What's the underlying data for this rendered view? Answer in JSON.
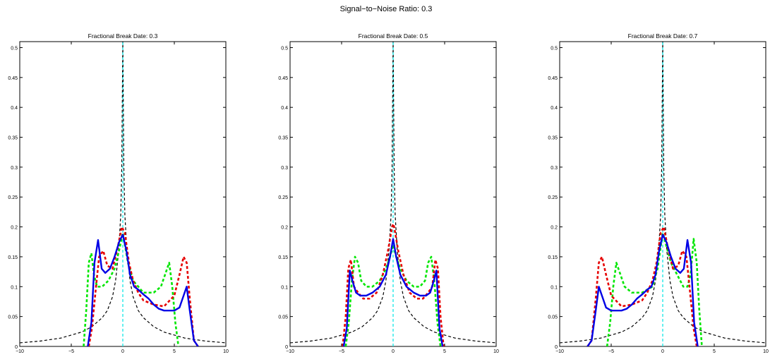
{
  "figure": {
    "suptitle": "Signal−to−Noise Ratio: 0.3"
  },
  "chart_data": [
    {
      "type": "line",
      "title": "Fractional Break Date: 0.3",
      "xlim": [
        -10,
        10
      ],
      "ylim": [
        0,
        0.51
      ],
      "xticks": [
        -10,
        -5,
        0,
        5,
        10
      ],
      "yticks": [
        0,
        0.05,
        0.1,
        0.15,
        0.2,
        0.25,
        0.3,
        0.35,
        0.4,
        0.45,
        0.5
      ],
      "grid": false,
      "series": [
        {
          "color": "#000000",
          "style": "dashed",
          "width": 1.2,
          "x": [
            -10,
            -8,
            -6,
            -4,
            -3,
            -2,
            -1.5,
            -1,
            -0.7,
            -0.4,
            -0.2,
            -0.1,
            0,
            0.1,
            0.2,
            0.4,
            0.7,
            1,
            1.5,
            2,
            3,
            4,
            6,
            8,
            10
          ],
          "y": [
            0.006,
            0.009,
            0.014,
            0.024,
            0.033,
            0.048,
            0.06,
            0.083,
            0.11,
            0.16,
            0.22,
            0.3,
            0.51,
            0.3,
            0.22,
            0.16,
            0.11,
            0.083,
            0.06,
            0.048,
            0.033,
            0.024,
            0.014,
            0.009,
            0.006
          ]
        },
        {
          "color": "#00e5e5",
          "style": "dashed",
          "width": 1.2,
          "x": [
            0,
            0
          ],
          "y": [
            0,
            0.51
          ]
        },
        {
          "color": "#00e600",
          "style": "dashed",
          "width": 2.6,
          "x": [
            -3.8,
            -3.55,
            -3.3,
            -3.05,
            -2.8,
            -2.5,
            -2.0,
            -1.4,
            -0.8,
            -0.3,
            0,
            0.5,
            1.0,
            2.0,
            3.0,
            3.7,
            4.2,
            4.5,
            4.8,
            5.1,
            5.4
          ],
          "y": [
            0,
            0.06,
            0.14,
            0.156,
            0.12,
            0.1,
            0.1,
            0.11,
            0.13,
            0.165,
            0.19,
            0.14,
            0.11,
            0.09,
            0.09,
            0.1,
            0.125,
            0.14,
            0.1,
            0.04,
            0
          ]
        },
        {
          "color": "#e60000",
          "style": "dashed",
          "width": 2.6,
          "x": [
            -3.3,
            -3.0,
            -2.6,
            -2.3,
            -1.9,
            -1.5,
            -1.0,
            -0.5,
            -0.1,
            0.2,
            0.6,
            1.0,
            1.5,
            2.0,
            3.0,
            4.0,
            5.0,
            5.5,
            5.9,
            6.2,
            6.5,
            6.9,
            7.3
          ],
          "y": [
            0,
            0.03,
            0.1,
            0.15,
            0.16,
            0.135,
            0.13,
            0.165,
            0.2,
            0.19,
            0.14,
            0.11,
            0.09,
            0.077,
            0.07,
            0.067,
            0.085,
            0.12,
            0.15,
            0.14,
            0.08,
            0.01,
            0
          ]
        },
        {
          "color": "#0000e6",
          "style": "solid",
          "width": 2.4,
          "x": [
            -3.4,
            -3.05,
            -2.75,
            -2.4,
            -2.05,
            -1.7,
            -1.25,
            -0.8,
            -0.35,
            0,
            0.35,
            0.7,
            1.1,
            1.5,
            2.0,
            2.5,
            3.0,
            3.5,
            4.0,
            4.5,
            5.0,
            5.5,
            5.9,
            6.2,
            6.5,
            6.9,
            7.3
          ],
          "y": [
            0,
            0.04,
            0.14,
            0.178,
            0.13,
            0.123,
            0.13,
            0.15,
            0.175,
            0.187,
            0.16,
            0.12,
            0.1,
            0.095,
            0.087,
            0.08,
            0.07,
            0.063,
            0.06,
            0.06,
            0.06,
            0.065,
            0.085,
            0.1,
            0.06,
            0.01,
            0
          ]
        }
      ]
    },
    {
      "type": "line",
      "title": "Fractional Break Date: 0.5",
      "xlim": [
        -10,
        10
      ],
      "ylim": [
        0,
        0.51
      ],
      "xticks": [
        -10,
        -5,
        0,
        5,
        10
      ],
      "yticks": [
        0,
        0.05,
        0.1,
        0.15,
        0.2,
        0.25,
        0.3,
        0.35,
        0.4,
        0.45,
        0.5
      ],
      "grid": false,
      "series": [
        {
          "color": "#000000",
          "style": "dashed",
          "width": 1.2,
          "x": [
            -10,
            -8,
            -6,
            -4,
            -3,
            -2,
            -1.5,
            -1,
            -0.7,
            -0.4,
            -0.2,
            -0.1,
            0,
            0.1,
            0.2,
            0.4,
            0.7,
            1,
            1.5,
            2,
            3,
            4,
            6,
            8,
            10
          ],
          "y": [
            0.006,
            0.009,
            0.014,
            0.024,
            0.033,
            0.048,
            0.06,
            0.083,
            0.11,
            0.16,
            0.22,
            0.3,
            0.51,
            0.3,
            0.22,
            0.16,
            0.11,
            0.083,
            0.06,
            0.048,
            0.033,
            0.024,
            0.014,
            0.009,
            0.006
          ]
        },
        {
          "color": "#00e5e5",
          "style": "dashed",
          "width": 1.2,
          "x": [
            0,
            0
          ],
          "y": [
            0,
            0.51
          ]
        },
        {
          "color": "#00e600",
          "style": "dashed",
          "width": 2.6,
          "x": [
            -4.6,
            -4.3,
            -4.0,
            -3.7,
            -3.4,
            -3.1,
            -2.6,
            -2.0,
            -1.3,
            -0.7,
            -0.3,
            0,
            0.3,
            0.7,
            1.3,
            2.0,
            2.6,
            3.1,
            3.4,
            3.7,
            4.0,
            4.3,
            4.6
          ],
          "y": [
            0,
            0.04,
            0.11,
            0.15,
            0.14,
            0.11,
            0.1,
            0.1,
            0.11,
            0.13,
            0.15,
            0.17,
            0.15,
            0.13,
            0.11,
            0.1,
            0.1,
            0.11,
            0.14,
            0.15,
            0.11,
            0.04,
            0
          ]
        },
        {
          "color": "#e60000",
          "style": "dashed",
          "width": 2.6,
          "x": [
            -4.9,
            -4.6,
            -4.35,
            -4.1,
            -3.8,
            -3.4,
            -2.9,
            -2.3,
            -1.6,
            -1.0,
            -0.5,
            -0.1,
            0,
            0.1,
            0.5,
            1.0,
            1.6,
            2.3,
            2.9,
            3.4,
            3.8,
            4.1,
            4.35,
            4.6,
            4.9
          ],
          "y": [
            0,
            0.05,
            0.13,
            0.145,
            0.1,
            0.09,
            0.08,
            0.08,
            0.09,
            0.12,
            0.16,
            0.2,
            0.205,
            0.2,
            0.16,
            0.12,
            0.09,
            0.08,
            0.08,
            0.09,
            0.1,
            0.145,
            0.13,
            0.05,
            0
          ]
        },
        {
          "color": "#0000e6",
          "style": "solid",
          "width": 2.4,
          "x": [
            -4.8,
            -4.5,
            -4.2,
            -3.95,
            -3.6,
            -3.2,
            -2.6,
            -2.0,
            -1.3,
            -0.7,
            -0.3,
            0,
            0.3,
            0.7,
            1.3,
            2.0,
            2.6,
            3.2,
            3.6,
            3.95,
            4.2,
            4.5,
            4.8
          ],
          "y": [
            0,
            0.03,
            0.127,
            0.11,
            0.09,
            0.085,
            0.085,
            0.09,
            0.1,
            0.12,
            0.15,
            0.18,
            0.15,
            0.12,
            0.1,
            0.09,
            0.085,
            0.085,
            0.09,
            0.11,
            0.127,
            0.03,
            0
          ]
        }
      ]
    },
    {
      "type": "line",
      "title": "Fractional Break Date: 0.7",
      "xlim": [
        -10,
        10
      ],
      "ylim": [
        0,
        0.51
      ],
      "xticks": [
        -10,
        -5,
        0,
        5,
        10
      ],
      "yticks": [
        0,
        0.05,
        0.1,
        0.15,
        0.2,
        0.25,
        0.3,
        0.35,
        0.4,
        0.45,
        0.5
      ],
      "grid": false,
      "series": [
        {
          "color": "#000000",
          "style": "dashed",
          "width": 1.2,
          "x": [
            -10,
            -8,
            -6,
            -4,
            -3,
            -2,
            -1.5,
            -1,
            -0.7,
            -0.4,
            -0.2,
            -0.1,
            0,
            0.1,
            0.2,
            0.4,
            0.7,
            1,
            1.5,
            2,
            3,
            4,
            6,
            8,
            10
          ],
          "y": [
            0.006,
            0.009,
            0.014,
            0.024,
            0.033,
            0.048,
            0.06,
            0.083,
            0.11,
            0.16,
            0.22,
            0.3,
            0.51,
            0.3,
            0.22,
            0.16,
            0.11,
            0.083,
            0.06,
            0.048,
            0.033,
            0.024,
            0.014,
            0.009,
            0.006
          ]
        },
        {
          "color": "#00e5e5",
          "style": "dashed",
          "width": 1.2,
          "x": [
            0,
            0
          ],
          "y": [
            0,
            0.51
          ]
        },
        {
          "color": "#00e600",
          "style": "dashed",
          "width": 2.6,
          "x": [
            -5.4,
            -5.1,
            -4.8,
            -4.5,
            -4.2,
            -3.7,
            -3.0,
            -2.0,
            -1.0,
            -0.5,
            0,
            0.4,
            0.8,
            1.4,
            2.0,
            2.4,
            2.7,
            3.0,
            3.3,
            3.55,
            3.8
          ],
          "y": [
            0,
            0.04,
            0.1,
            0.14,
            0.125,
            0.1,
            0.09,
            0.09,
            0.1,
            0.13,
            0.19,
            0.165,
            0.14,
            0.12,
            0.1,
            0.1,
            0.12,
            0.18,
            0.14,
            0.06,
            0
          ]
        },
        {
          "color": "#e60000",
          "style": "dashed",
          "width": 2.6,
          "x": [
            -7.3,
            -6.9,
            -6.5,
            -6.2,
            -5.9,
            -5.5,
            -5.0,
            -4.0,
            -3.0,
            -2.0,
            -1.5,
            -1.0,
            -0.6,
            -0.2,
            0.1,
            0.5,
            1.0,
            1.5,
            1.9,
            2.3,
            2.6,
            3.0,
            3.3
          ],
          "y": [
            0,
            0.01,
            0.08,
            0.14,
            0.15,
            0.12,
            0.085,
            0.067,
            0.07,
            0.077,
            0.09,
            0.11,
            0.14,
            0.19,
            0.2,
            0.165,
            0.13,
            0.135,
            0.16,
            0.15,
            0.1,
            0.03,
            0
          ]
        },
        {
          "color": "#0000e6",
          "style": "solid",
          "width": 2.4,
          "x": [
            -7.3,
            -6.9,
            -6.5,
            -6.2,
            -5.9,
            -5.5,
            -5.0,
            -4.5,
            -4.0,
            -3.5,
            -3.0,
            -2.5,
            -2.0,
            -1.5,
            -1.1,
            -0.7,
            -0.35,
            0,
            0.35,
            0.8,
            1.25,
            1.7,
            2.05,
            2.4,
            2.75,
            3.05,
            3.4
          ],
          "y": [
            0,
            0.01,
            0.06,
            0.1,
            0.085,
            0.065,
            0.06,
            0.06,
            0.06,
            0.063,
            0.07,
            0.08,
            0.087,
            0.095,
            0.1,
            0.12,
            0.16,
            0.187,
            0.175,
            0.15,
            0.13,
            0.123,
            0.13,
            0.178,
            0.14,
            0.04,
            0
          ]
        }
      ]
    }
  ]
}
